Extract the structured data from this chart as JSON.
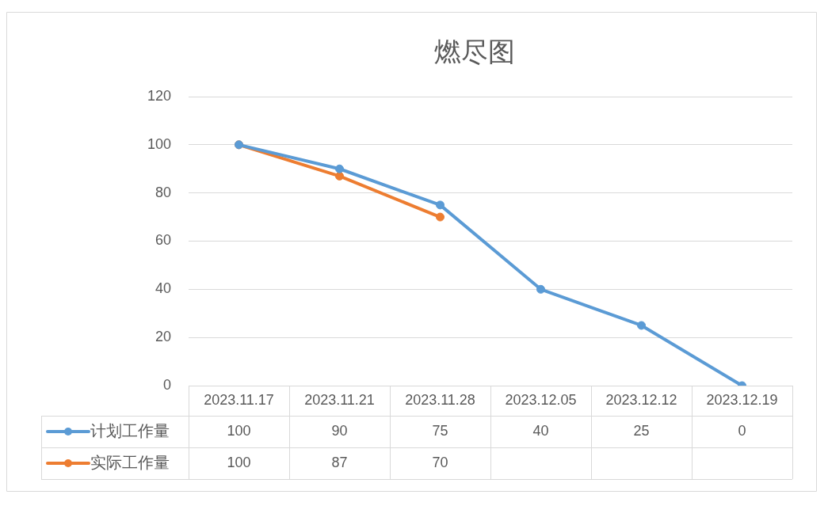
{
  "chart_data": {
    "type": "line",
    "title": "燃尽图",
    "categories": [
      "2023.11.17",
      "2023.11.21",
      "2023.11.28",
      "2023.12.05",
      "2023.12.12",
      "2023.12.19"
    ],
    "series": [
      {
        "name": "计划工作量",
        "color": "#5b9bd5",
        "values": [
          100,
          90,
          75,
          40,
          25,
          0
        ]
      },
      {
        "name": "实际工作量",
        "color": "#ed7d31",
        "values": [
          100,
          87,
          70,
          null,
          null,
          null
        ]
      }
    ],
    "ylim": [
      0,
      120
    ],
    "yticks": [
      0,
      20,
      40,
      60,
      80,
      100,
      120
    ],
    "grid": "y",
    "legend": "bottom",
    "marker": "circle",
    "line_style": "solid",
    "data_labels": true
  }
}
